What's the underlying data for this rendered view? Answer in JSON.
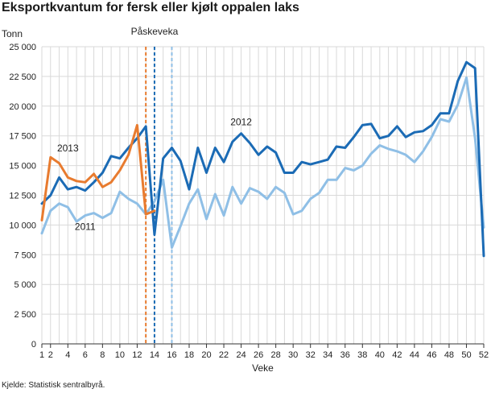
{
  "chart_data": {
    "type": "line",
    "title": "Eksportkvantum for fersk eller kjølt oppalen laks",
    "ylabel": "Tonn",
    "xlabel": "Veke",
    "source": "Kjelde: Statistisk sentralbyrå.",
    "ylim": [
      0,
      25000
    ],
    "xlim": [
      1,
      52
    ],
    "yticks": [
      0,
      2500,
      5000,
      7500,
      10000,
      12500,
      15000,
      17500,
      20000,
      22500,
      25000
    ],
    "ytick_labels": [
      "0",
      "2 500",
      "5 000",
      "7 500",
      "10 000",
      "12 500",
      "15 000",
      "17 500",
      "20 000",
      "22 500",
      "25 000"
    ],
    "xticks": [
      1,
      2,
      4,
      6,
      8,
      10,
      12,
      14,
      16,
      18,
      20,
      22,
      24,
      26,
      28,
      30,
      32,
      34,
      36,
      38,
      40,
      42,
      44,
      46,
      48,
      50,
      52
    ],
    "grid": true,
    "series": [
      {
        "name": "2011",
        "color": "#8fbfe6",
        "x": [
          1,
          2,
          3,
          4,
          5,
          6,
          7,
          8,
          9,
          10,
          11,
          12,
          13,
          14,
          15,
          16,
          17,
          18,
          19,
          20,
          21,
          22,
          23,
          24,
          25,
          26,
          27,
          28,
          29,
          30,
          31,
          32,
          33,
          34,
          35,
          36,
          37,
          38,
          39,
          40,
          41,
          42,
          43,
          44,
          45,
          46,
          47,
          48,
          49,
          50,
          51,
          52
        ],
        "values": [
          9300,
          11200,
          11800,
          11500,
          10300,
          10800,
          11000,
          10600,
          11000,
          12800,
          12200,
          11800,
          10900,
          12000,
          13800,
          8100,
          9900,
          11800,
          13000,
          10500,
          12600,
          10800,
          13200,
          11800,
          13100,
          12800,
          12200,
          13200,
          12700,
          10900,
          11200,
          12200,
          12700,
          13800,
          13800,
          14800,
          14600,
          15000,
          16000,
          16700,
          16400,
          16200,
          15900,
          15300,
          16200,
          17400,
          18900,
          18700,
          20100,
          22400,
          17300,
          9800
        ]
      },
      {
        "name": "2012",
        "color": "#1b6bb5",
        "x": [
          1,
          2,
          3,
          4,
          5,
          6,
          7,
          8,
          9,
          10,
          11,
          12,
          13,
          14,
          15,
          16,
          17,
          18,
          19,
          20,
          21,
          22,
          23,
          24,
          25,
          26,
          27,
          28,
          29,
          30,
          31,
          32,
          33,
          34,
          35,
          36,
          37,
          38,
          39,
          40,
          41,
          42,
          43,
          44,
          45,
          46,
          47,
          48,
          49,
          50,
          51,
          52
        ],
        "values": [
          11800,
          12500,
          14000,
          13000,
          13200,
          12900,
          13600,
          14400,
          15800,
          15600,
          16500,
          17300,
          18300,
          9200,
          15600,
          16500,
          15400,
          13000,
          16500,
          14400,
          16500,
          15300,
          17000,
          17700,
          16900,
          15900,
          16600,
          16100,
          14400,
          14400,
          15300,
          15100,
          15300,
          15500,
          16600,
          16500,
          17400,
          18400,
          18500,
          17300,
          17500,
          18300,
          17400,
          17800,
          17900,
          18400,
          19400,
          19400,
          22100,
          23700,
          23200,
          7400
        ]
      },
      {
        "name": "2013",
        "color": "#e87b2f",
        "x": [
          1,
          2,
          3,
          4,
          5,
          6,
          7,
          8,
          9,
          10,
          11,
          12,
          13,
          14
        ],
        "values": [
          10400,
          15700,
          15200,
          14000,
          13700,
          13600,
          14300,
          13200,
          13600,
          14600,
          15900,
          18400,
          10900,
          11200
        ]
      }
    ],
    "annotations": [
      {
        "text": "2013",
        "x": 4,
        "y": 16200
      },
      {
        "text": "2011",
        "x": 6,
        "y": 9600
      },
      {
        "text": "2012",
        "x": 24,
        "y": 18400
      },
      {
        "text": "Påskeveka",
        "x": 14,
        "y": 26000
      }
    ],
    "reference_lines": [
      {
        "x": 13,
        "color": "#e87b2f",
        "dash": true
      },
      {
        "x": 14,
        "color": "#1b6bb5",
        "dash": true
      },
      {
        "x": 16,
        "color": "#8fbfe6",
        "dash": true
      }
    ]
  }
}
